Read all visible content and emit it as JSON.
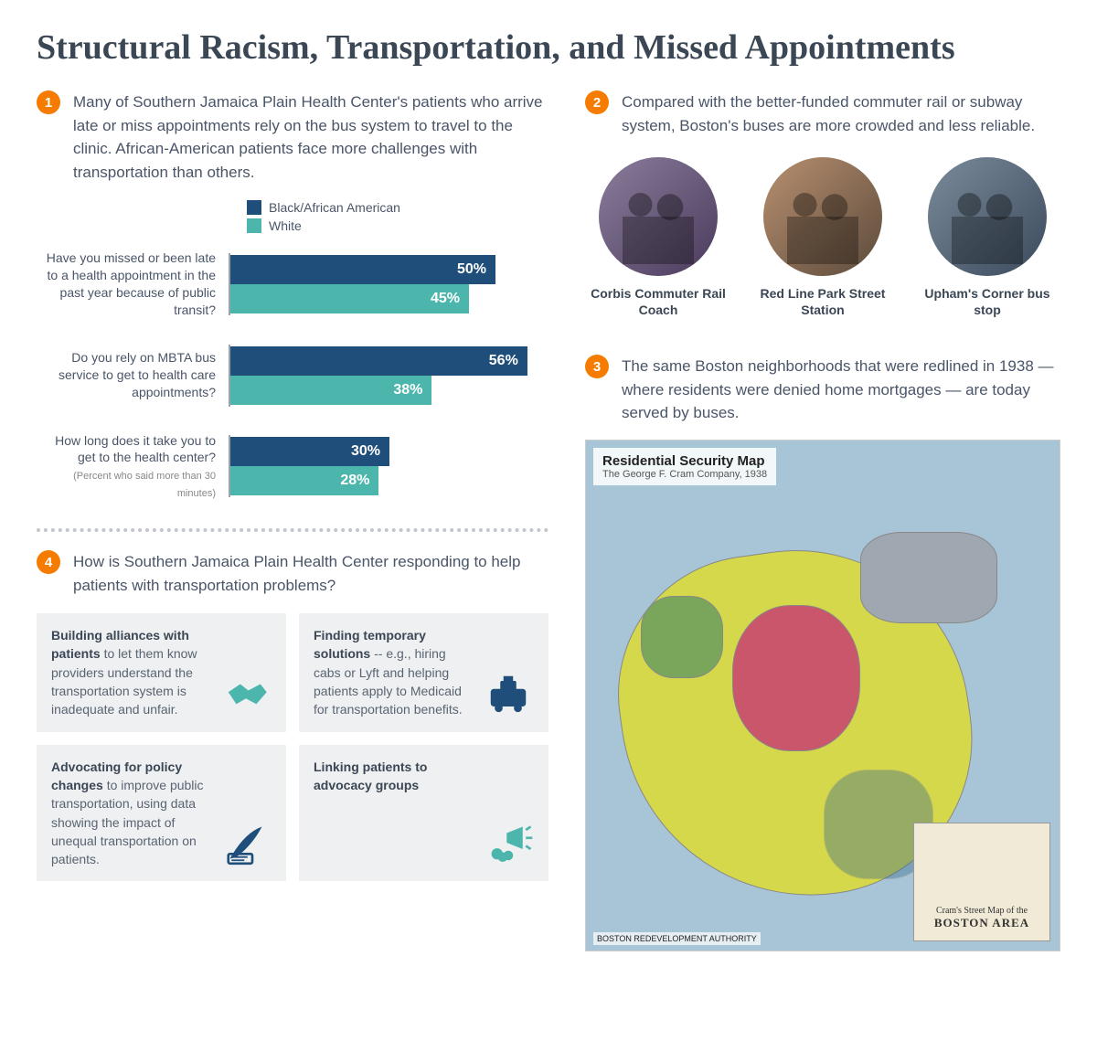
{
  "title": "Structural Racism, Transportation, and Missed Appointments",
  "colors": {
    "badge": "#f57c00",
    "series_a": "#1e4e79",
    "series_b": "#4db6ac",
    "card_bg": "#eef0f2",
    "text_dark": "#3b4754"
  },
  "section1": {
    "num": "1",
    "text": "Many of Southern Jamaica Plain Health Center's patients who arrive late or miss appointments rely on the bus system to travel to the clinic.  African-American patients face more challenges with transportation than others.",
    "legend": {
      "a": "Black/African American",
      "b": "White"
    },
    "chart": {
      "type": "bar",
      "xmax": 60,
      "groups": [
        {
          "label": "Have you missed or been late to a health appointment in the past year because of public transit?",
          "sub": "",
          "a": 50,
          "b": 45,
          "a_label": "50%",
          "b_label": "45%"
        },
        {
          "label": "Do you rely on MBTA bus service to get to health care appointments?",
          "sub": "",
          "a": 56,
          "b": 38,
          "a_label": "56%",
          "b_label": "38%"
        },
        {
          "label": "How long does it take you to get to the health center?",
          "sub": "(Percent who said more than 30 minutes)",
          "a": 30,
          "b": 28,
          "a_label": "30%",
          "b_label": "28%"
        }
      ]
    }
  },
  "section2": {
    "num": "2",
    "text": "Compared with the better-funded commuter rail or subway system, Boston's buses are more crowded and less reliable.",
    "photos": [
      {
        "caption": "Corbis Commuter Rail Coach"
      },
      {
        "caption": "Red Line Park Street Station"
      },
      {
        "caption": "Upham's Corner bus stop"
      }
    ]
  },
  "section3": {
    "num": "3",
    "text": "The same Boston neighborhoods that were redlined in 1938 — where residents were denied home mortgages — are today served by buses.",
    "map": {
      "title": "Residential Security Map",
      "subtitle": "The George F. Cram Company, 1938",
      "inset_line1": "Cram's Street Map of the",
      "inset_line2": "BOSTON AREA",
      "credit": "BOSTON REDEVELOPMENT AUTHORITY",
      "land_colors": {
        "green": "#7aa65c",
        "yellow": "#d4d84a",
        "red": "#c9566b",
        "blue": "#3a6b8c",
        "water": "#a8c5d8"
      }
    }
  },
  "section4": {
    "num": "4",
    "text": "How is Southern Jamaica Plain Health Center responding to help patients with transportation problems?",
    "cards": [
      {
        "bold": "Building alliances with patients",
        "rest": " to let them know providers understand the transportation system is inadequate and unfair.",
        "icon": "handshake",
        "icon_color": "#4db6ac"
      },
      {
        "bold": "Finding temporary solutions",
        "rest": " -- e.g., hiring cabs or Lyft and helping patients apply to Medicaid for transportation benefits.",
        "icon": "taxi",
        "icon_color": "#1e4e79"
      },
      {
        "bold": "Advocating for policy changes",
        "rest": " to improve public transportation, using data showing the impact of unequal transportation on patients.",
        "icon": "quill",
        "icon_color": "#1e4e79"
      },
      {
        "bold": "Linking patients to advocacy groups",
        "rest": "",
        "icon": "megaphone",
        "icon_color": "#4db6ac"
      }
    ]
  }
}
